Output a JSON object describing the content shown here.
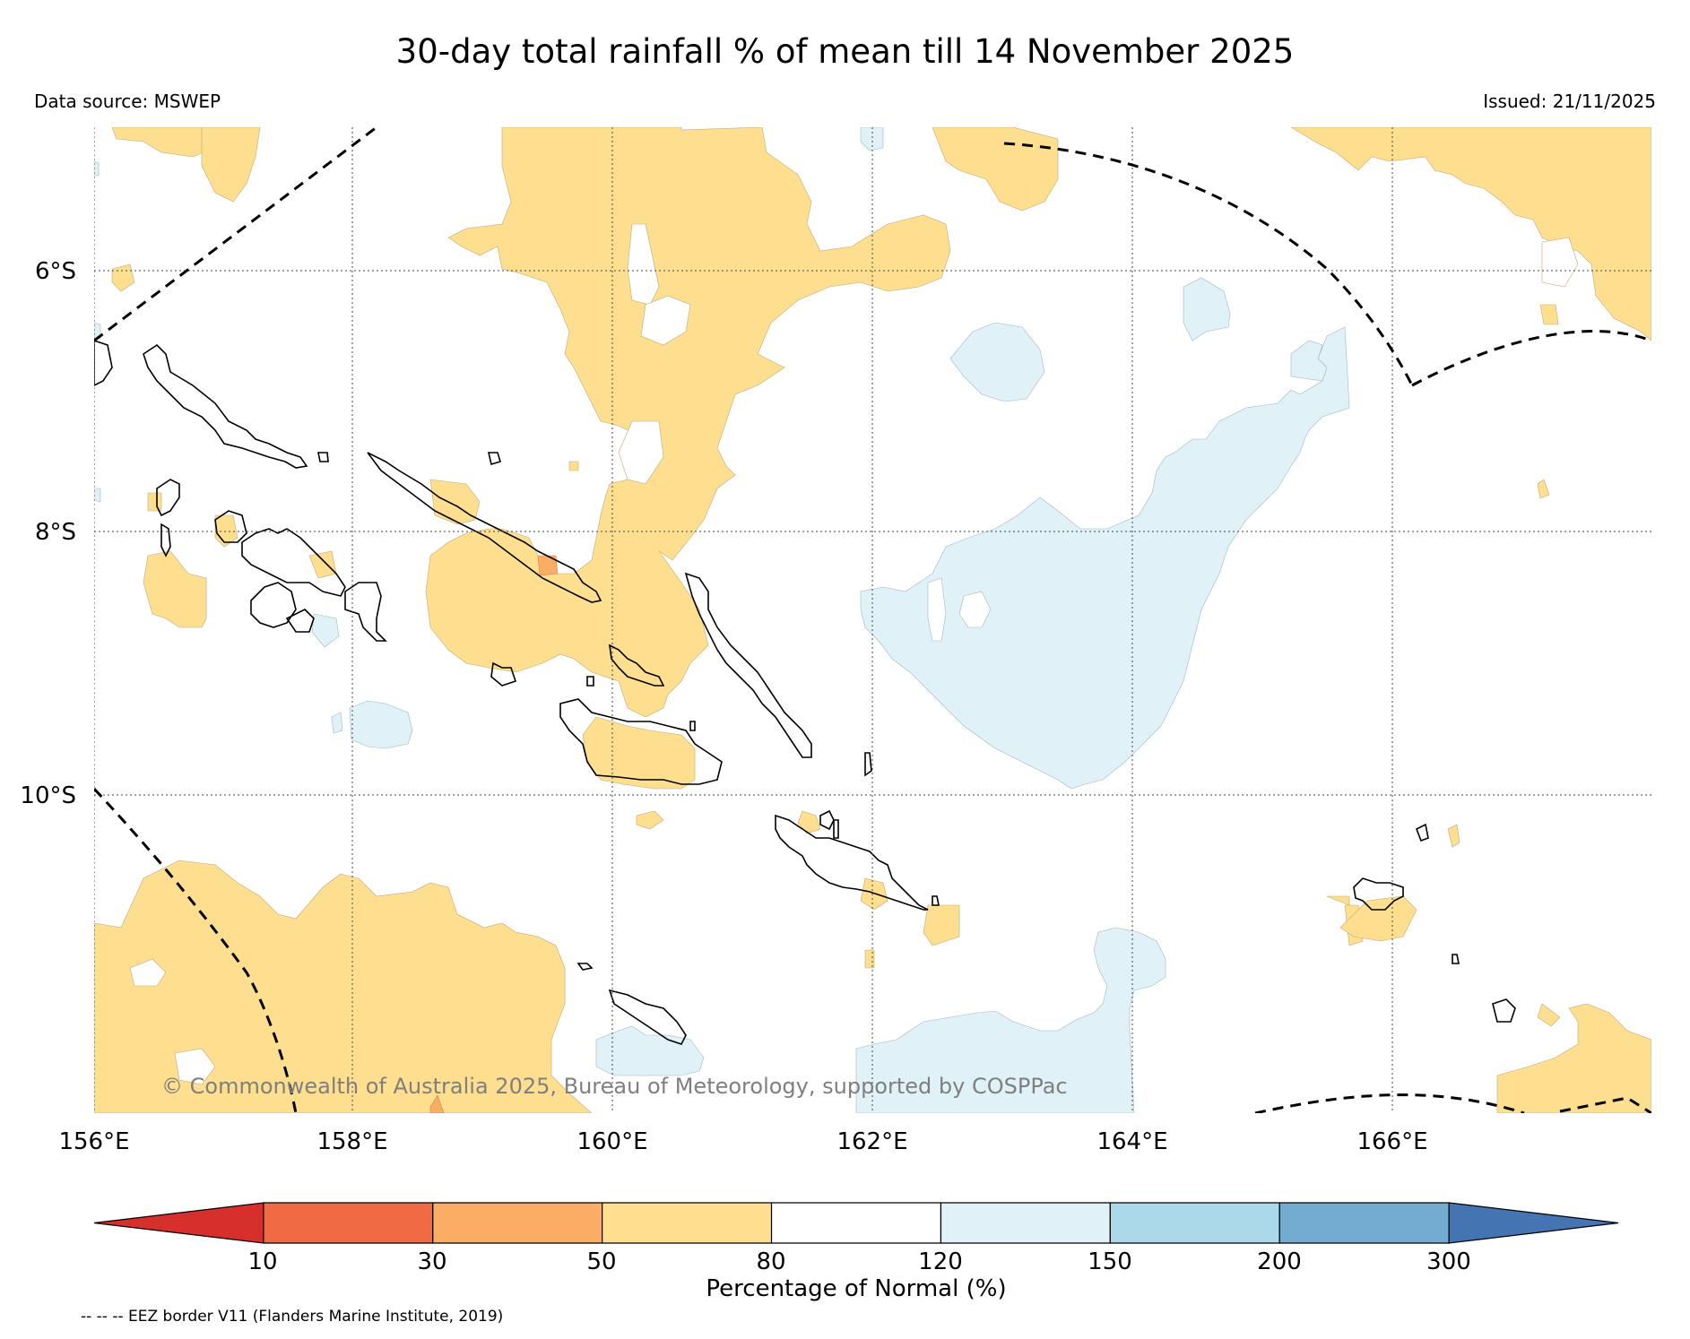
{
  "title": "30-day total rainfall % of mean till 14 November 2025",
  "data_source": "Data source: MSWEP",
  "issued": "Issued: 21/11/2025",
  "copyright": "© Commonwealth of Australia 2025, Bureau of Meteorology, supported by COSPPac",
  "lat_labels": [
    "6°S",
    "8°S",
    "10°S"
  ],
  "lon_labels": [
    "156°E",
    "158°E",
    "160°E",
    "162°E",
    "164°E",
    "166°E"
  ],
  "colorbar": {
    "label": "Percentage of Normal (%)",
    "ticks": [
      "10",
      "30",
      "50",
      "80",
      "120",
      "150",
      "200",
      "300"
    ],
    "colors": [
      "#d7302c",
      "#f06b44",
      "#fbad64",
      "#fedf8f",
      "#ffffff",
      "#e0f2f8",
      "#abd9e9",
      "#74acd1",
      "#4574b3"
    ]
  },
  "footnote": "-- -- -- EEZ border V11 (Flanders Marine Institute, 2019)"
}
